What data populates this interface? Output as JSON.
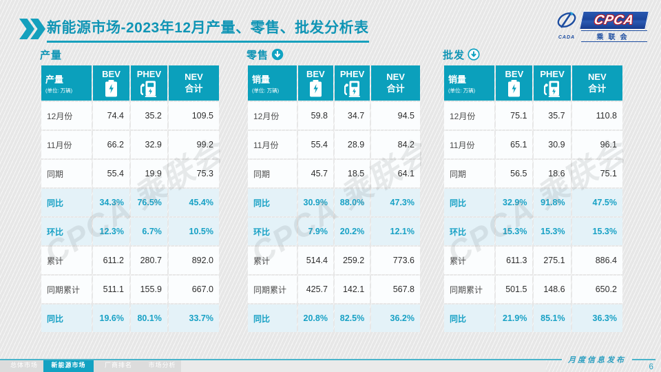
{
  "title": {
    "bold": "新能源市场",
    "rest": "-2023年12月产量、零售、批发分析表"
  },
  "logo": {
    "cada": "CADA",
    "cpca": "CPCA",
    "assoc": "乘联会"
  },
  "colors": {
    "accent_teal": "#0ba0bc",
    "highlight_bg": "#e4f2f8",
    "percent_text": "#18a1c5",
    "logo_blue": "#1d4da0"
  },
  "watermark": {
    "text": "CPCA 乘联会"
  },
  "tables": [
    {
      "section": "产量",
      "arrow": "none",
      "corner_label": "产量",
      "unit": "(单位: 万辆)",
      "columns": [
        "BEV",
        "PHEV",
        "NEV\n合计"
      ],
      "rows": [
        {
          "label": "12月份",
          "values": [
            "74.4",
            "35.2",
            "109.5"
          ],
          "highlight": false
        },
        {
          "label": "11月份",
          "values": [
            "66.2",
            "32.9",
            "99.2"
          ],
          "highlight": false
        },
        {
          "label": "同期",
          "values": [
            "55.4",
            "19.9",
            "75.3"
          ],
          "highlight": false
        },
        {
          "label": "同比",
          "values": [
            "34.3%",
            "76.5%",
            "45.4%"
          ],
          "highlight": true
        },
        {
          "label": "环比",
          "values": [
            "12.3%",
            "6.7%",
            "10.5%"
          ],
          "highlight": true
        },
        {
          "label": "累计",
          "values": [
            "611.2",
            "280.7",
            "892.0"
          ],
          "highlight": false
        },
        {
          "label": "同期累计",
          "values": [
            "511.1",
            "155.9",
            "667.0"
          ],
          "highlight": false
        },
        {
          "label": "同比",
          "values": [
            "19.6%",
            "80.1%",
            "33.7%"
          ],
          "highlight": true
        }
      ]
    },
    {
      "section": "零售",
      "arrow": "filled",
      "corner_label": "销量",
      "unit": "(单位: 万辆)",
      "columns": [
        "BEV",
        "PHEV",
        "NEV\n合计"
      ],
      "rows": [
        {
          "label": "12月份",
          "values": [
            "59.8",
            "34.7",
            "94.5"
          ],
          "highlight": false
        },
        {
          "label": "11月份",
          "values": [
            "55.4",
            "28.9",
            "84.2"
          ],
          "highlight": false
        },
        {
          "label": "同期",
          "values": [
            "45.7",
            "18.5",
            "64.1"
          ],
          "highlight": false
        },
        {
          "label": "同比",
          "values": [
            "30.9%",
            "88.0%",
            "47.3%"
          ],
          "highlight": true
        },
        {
          "label": "环比",
          "values": [
            "7.9%",
            "20.2%",
            "12.1%"
          ],
          "highlight": true
        },
        {
          "label": "累计",
          "values": [
            "514.4",
            "259.2",
            "773.6"
          ],
          "highlight": false
        },
        {
          "label": "同期累计",
          "values": [
            "425.7",
            "142.1",
            "567.8"
          ],
          "highlight": false
        },
        {
          "label": "同比",
          "values": [
            "20.8%",
            "82.5%",
            "36.2%"
          ],
          "highlight": true
        }
      ]
    },
    {
      "section": "批发",
      "arrow": "ring",
      "corner_label": "销量",
      "unit": "(单位: 万辆)",
      "columns": [
        "BEV",
        "PHEV",
        "NEV\n合计"
      ],
      "rows": [
        {
          "label": "12月份",
          "values": [
            "75.1",
            "35.7",
            "110.8"
          ],
          "highlight": false
        },
        {
          "label": "11月份",
          "values": [
            "65.1",
            "30.9",
            "96.1"
          ],
          "highlight": false
        },
        {
          "label": "同期",
          "values": [
            "56.5",
            "18.6",
            "75.1"
          ],
          "highlight": false
        },
        {
          "label": "同比",
          "values": [
            "32.9%",
            "91.8%",
            "47.5%"
          ],
          "highlight": true
        },
        {
          "label": "环比",
          "values": [
            "15.3%",
            "15.3%",
            "15.3%"
          ],
          "highlight": true
        },
        {
          "label": "累计",
          "values": [
            "611.3",
            "275.1",
            "886.4"
          ],
          "highlight": false
        },
        {
          "label": "同期累计",
          "values": [
            "501.5",
            "148.6",
            "650.2"
          ],
          "highlight": false
        },
        {
          "label": "同比",
          "values": [
            "21.9%",
            "85.1%",
            "36.3%"
          ],
          "highlight": true
        }
      ]
    }
  ],
  "footer": {
    "tabs": [
      "总体市场",
      "新能源市场",
      "厂商排名",
      "市场分析"
    ],
    "active_index": 1,
    "publish": "月度信息发布",
    "page": "6"
  }
}
